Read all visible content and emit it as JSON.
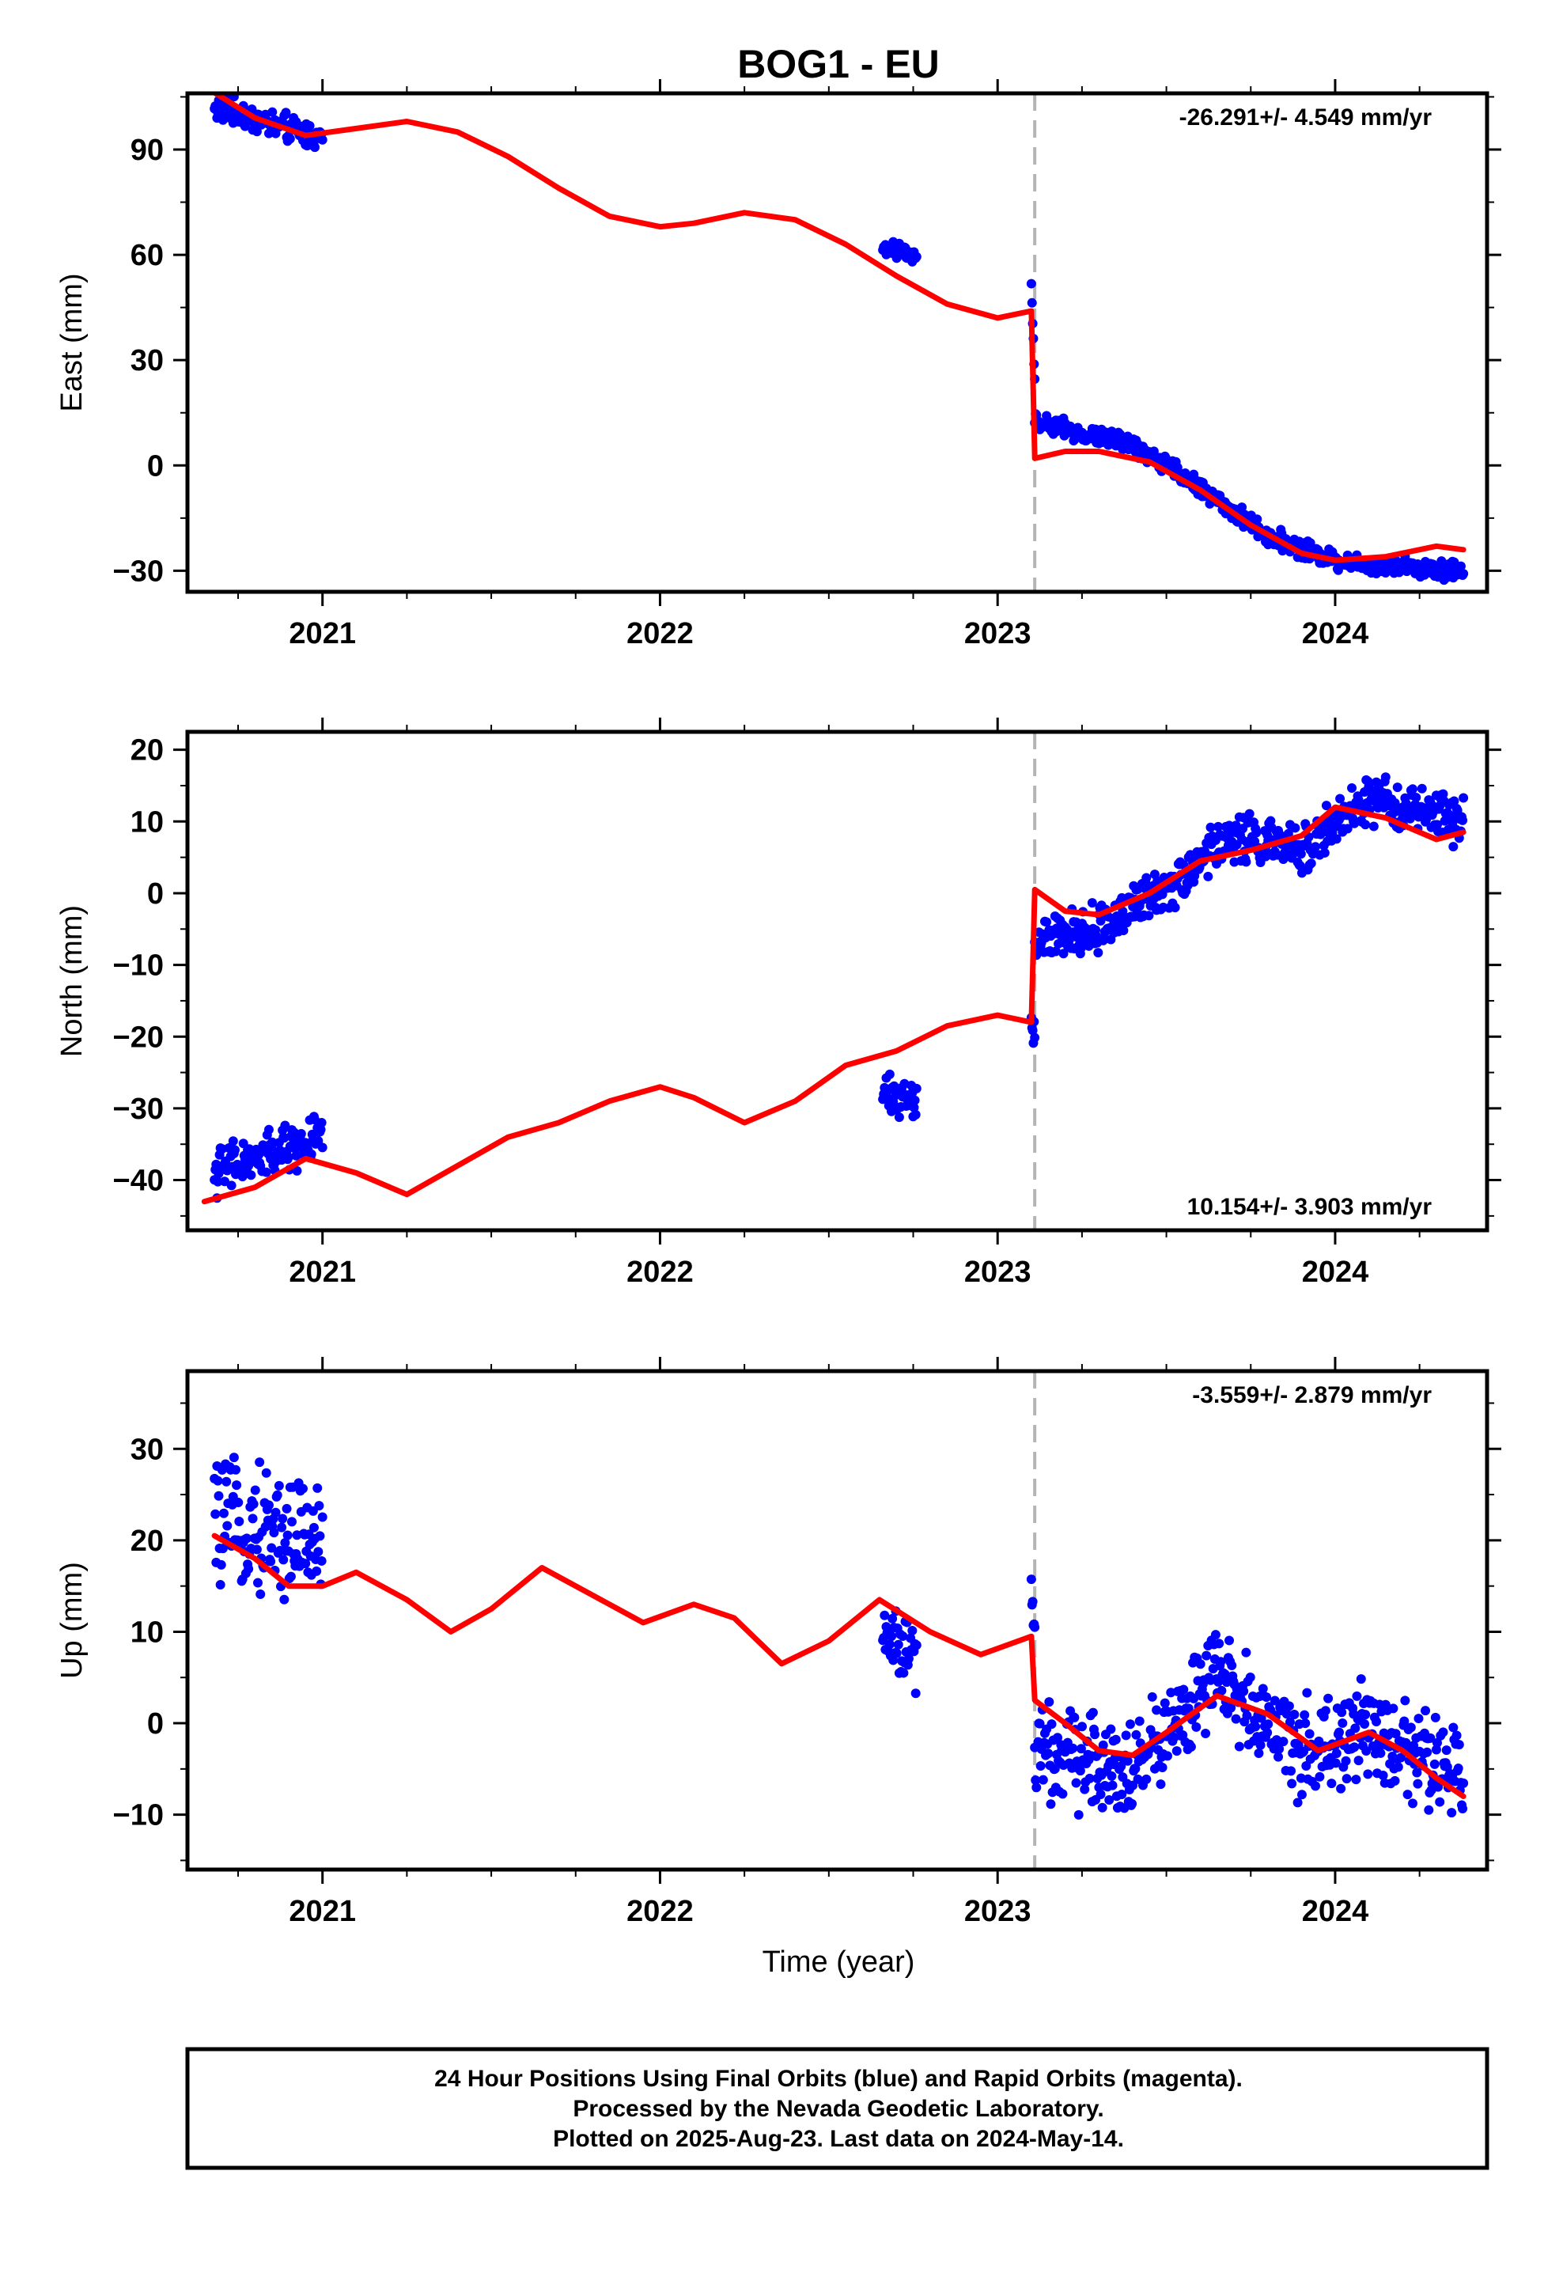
{
  "title": "BOG1 - EU",
  "colors": {
    "data": "#0000ff",
    "model": "#ff0000",
    "event_line": "#b4b4b4",
    "frame": "#000000"
  },
  "footer": {
    "line1": "24 Hour Positions Using Final Orbits (blue) and Rapid Orbits (magenta).",
    "line2": "Processed by the Nevada Geodetic Laboratory.",
    "line3": "Plotted on 2025-Aug-23. Last data on 2024-May-14."
  },
  "chart_data": [
    {
      "type": "scatter",
      "ylabel": "East (mm)",
      "xlabel": "",
      "xlim": [
        2020.6,
        2024.45
      ],
      "ylim": [
        -36,
        106
      ],
      "x_ticks": [
        2021,
        2022,
        2023,
        2024
      ],
      "x_tick_labels": [
        "2021",
        "2022",
        "2023",
        "2024"
      ],
      "y_ticks": [
        -30,
        0,
        30,
        60,
        90
      ],
      "y_tick_labels": [
        "−30",
        "0",
        "30",
        "60",
        "90"
      ],
      "rate_label": "-26.291+/- 4.549 mm/yr",
      "rate_position": "top-right",
      "event_line_x": 2023.11,
      "model_series": {
        "x": [
          2020.65,
          2020.8,
          2020.95,
          2021.1,
          2021.25,
          2021.4,
          2021.55,
          2021.7,
          2021.85,
          2022.0,
          2022.1,
          2022.25,
          2022.4,
          2022.55,
          2022.7,
          2022.85,
          2023.0,
          2023.1,
          2023.11,
          2023.2,
          2023.3,
          2023.45,
          2023.6,
          2023.75,
          2023.9,
          2024.0,
          2024.15,
          2024.3,
          2024.38
        ],
        "values": [
          108,
          99,
          94,
          96,
          98,
          95,
          88,
          79,
          71,
          68,
          69,
          72,
          70,
          63,
          54,
          46,
          42,
          44,
          2,
          4,
          4,
          1,
          -7,
          -17,
          -25,
          -27,
          -26,
          -23,
          -24
        ]
      },
      "data_clusters": [
        {
          "x_range": [
            2020.68,
            2021.0
          ],
          "center": [
            102,
            93
          ],
          "spread": 3
        },
        {
          "x_range": [
            2022.66,
            2022.76
          ],
          "center": [
            62,
            60
          ],
          "spread": 1.5
        },
        {
          "x_range": [
            2023.1,
            2023.11
          ],
          "center": [
            52,
            25
          ],
          "spread": 1
        },
        {
          "x_range": [
            2023.11,
            2024.38
          ],
          "piecewise_center": {
            "x": [
              2023.11,
              2023.4,
              2023.55,
              2023.8,
              2024.0,
              2024.38
            ],
            "y": [
              12,
              6,
              -3,
              -20,
              -27,
              -30
            ]
          },
          "spread": 2
        }
      ]
    },
    {
      "type": "scatter",
      "ylabel": "North (mm)",
      "xlabel": "",
      "xlim": [
        2020.6,
        2024.45
      ],
      "ylim": [
        -47,
        22.5
      ],
      "x_ticks": [
        2021,
        2022,
        2023,
        2024
      ],
      "x_tick_labels": [
        "2021",
        "2022",
        "2023",
        "2024"
      ],
      "y_ticks": [
        -40,
        -30,
        -20,
        -10,
        0,
        10,
        20
      ],
      "y_tick_labels": [
        "−40",
        "−30",
        "−20",
        "−10",
        "0",
        "10",
        "20"
      ],
      "rate_label": "10.154+/- 3.903 mm/yr",
      "rate_position": "bottom-right",
      "event_line_x": 2023.11,
      "model_series": {
        "x": [
          2020.65,
          2020.8,
          2020.95,
          2021.1,
          2021.25,
          2021.4,
          2021.55,
          2021.7,
          2021.85,
          2022.0,
          2022.1,
          2022.25,
          2022.4,
          2022.55,
          2022.7,
          2022.85,
          2023.0,
          2023.1,
          2023.11,
          2023.2,
          2023.3,
          2023.45,
          2023.6,
          2023.75,
          2023.9,
          2024.0,
          2024.15,
          2024.3,
          2024.38
        ],
        "values": [
          -43,
          -41,
          -37,
          -39,
          -42,
          -38,
          -34,
          -32,
          -29,
          -27,
          -28.5,
          -32,
          -29,
          -24,
          -22,
          -18.5,
          -17,
          -18,
          0.5,
          -2.5,
          -3,
          0,
          4.5,
          6,
          8,
          12,
          10.5,
          7.5,
          8.5
        ]
      },
      "data_clusters": [
        {
          "x_range": [
            2020.68,
            2021.0
          ],
          "center": [
            -39,
            -34
          ],
          "spread": 2.5
        },
        {
          "x_range": [
            2022.66,
            2022.76
          ],
          "center": [
            -28,
            -29
          ],
          "spread": 2
        },
        {
          "x_range": [
            2023.1,
            2023.11
          ],
          "center": [
            -18,
            -20
          ],
          "spread": 2
        },
        {
          "x_range": [
            2023.11,
            2024.38
          ],
          "piecewise_center": {
            "x": [
              2023.11,
              2023.3,
              2023.5,
              2023.7,
              2023.9,
              2024.1,
              2024.38
            ],
            "y": [
              -7,
              -5,
              1,
              8,
              6,
              13,
              10
            ]
          },
          "spread": 2.5
        }
      ]
    },
    {
      "type": "scatter",
      "ylabel": "Up (mm)",
      "xlabel": "Time (year)",
      "xlim": [
        2020.6,
        2024.45
      ],
      "ylim": [
        -16,
        38.5
      ],
      "x_ticks": [
        2021,
        2022,
        2023,
        2024
      ],
      "x_tick_labels": [
        "2021",
        "2022",
        "2023",
        "2024"
      ],
      "y_ticks": [
        -10,
        0,
        10,
        20,
        30
      ],
      "y_tick_labels": [
        "−10",
        "0",
        "10",
        "20",
        "30"
      ],
      "rate_label": "-3.559+/- 2.879 mm/yr",
      "rate_position": "top-right",
      "event_line_x": 2023.11,
      "model_series": {
        "x": [
          2020.68,
          2020.8,
          2020.9,
          2021.0,
          2021.1,
          2021.25,
          2021.38,
          2021.5,
          2021.65,
          2021.8,
          2021.95,
          2022.1,
          2022.22,
          2022.36,
          2022.5,
          2022.65,
          2022.8,
          2022.95,
          2023.1,
          2023.11,
          2023.2,
          2023.3,
          2023.4,
          2023.5,
          2023.65,
          2023.8,
          2023.95,
          2024.1,
          2024.2,
          2024.3,
          2024.38
        ],
        "values": [
          20.5,
          18,
          15,
          15,
          16.5,
          13.5,
          10,
          12.5,
          17,
          14,
          11,
          13,
          11.5,
          6.5,
          9,
          13.5,
          10,
          7.5,
          9.5,
          2.5,
          0,
          -3,
          -3.5,
          -1,
          3,
          1,
          -3,
          -1,
          -3,
          -6,
          -8
        ]
      },
      "data_clusters": [
        {
          "x_range": [
            2020.68,
            2021.0
          ],
          "center": [
            22,
            20
          ],
          "spread": 5
        },
        {
          "x_range": [
            2022.66,
            2022.76
          ],
          "center": [
            10,
            7
          ],
          "spread": 3
        },
        {
          "x_range": [
            2023.1,
            2023.11
          ],
          "center": [
            14,
            10
          ],
          "spread": 2
        },
        {
          "x_range": [
            2023.11,
            2024.38
          ],
          "piecewise_center": {
            "x": [
              2023.11,
              2023.4,
              2023.65,
              2023.9,
              2024.1,
              2024.38
            ],
            "y": [
              -3,
              -5,
              5,
              -3,
              -1,
              -6
            ]
          },
          "spread": 4
        }
      ]
    }
  ]
}
